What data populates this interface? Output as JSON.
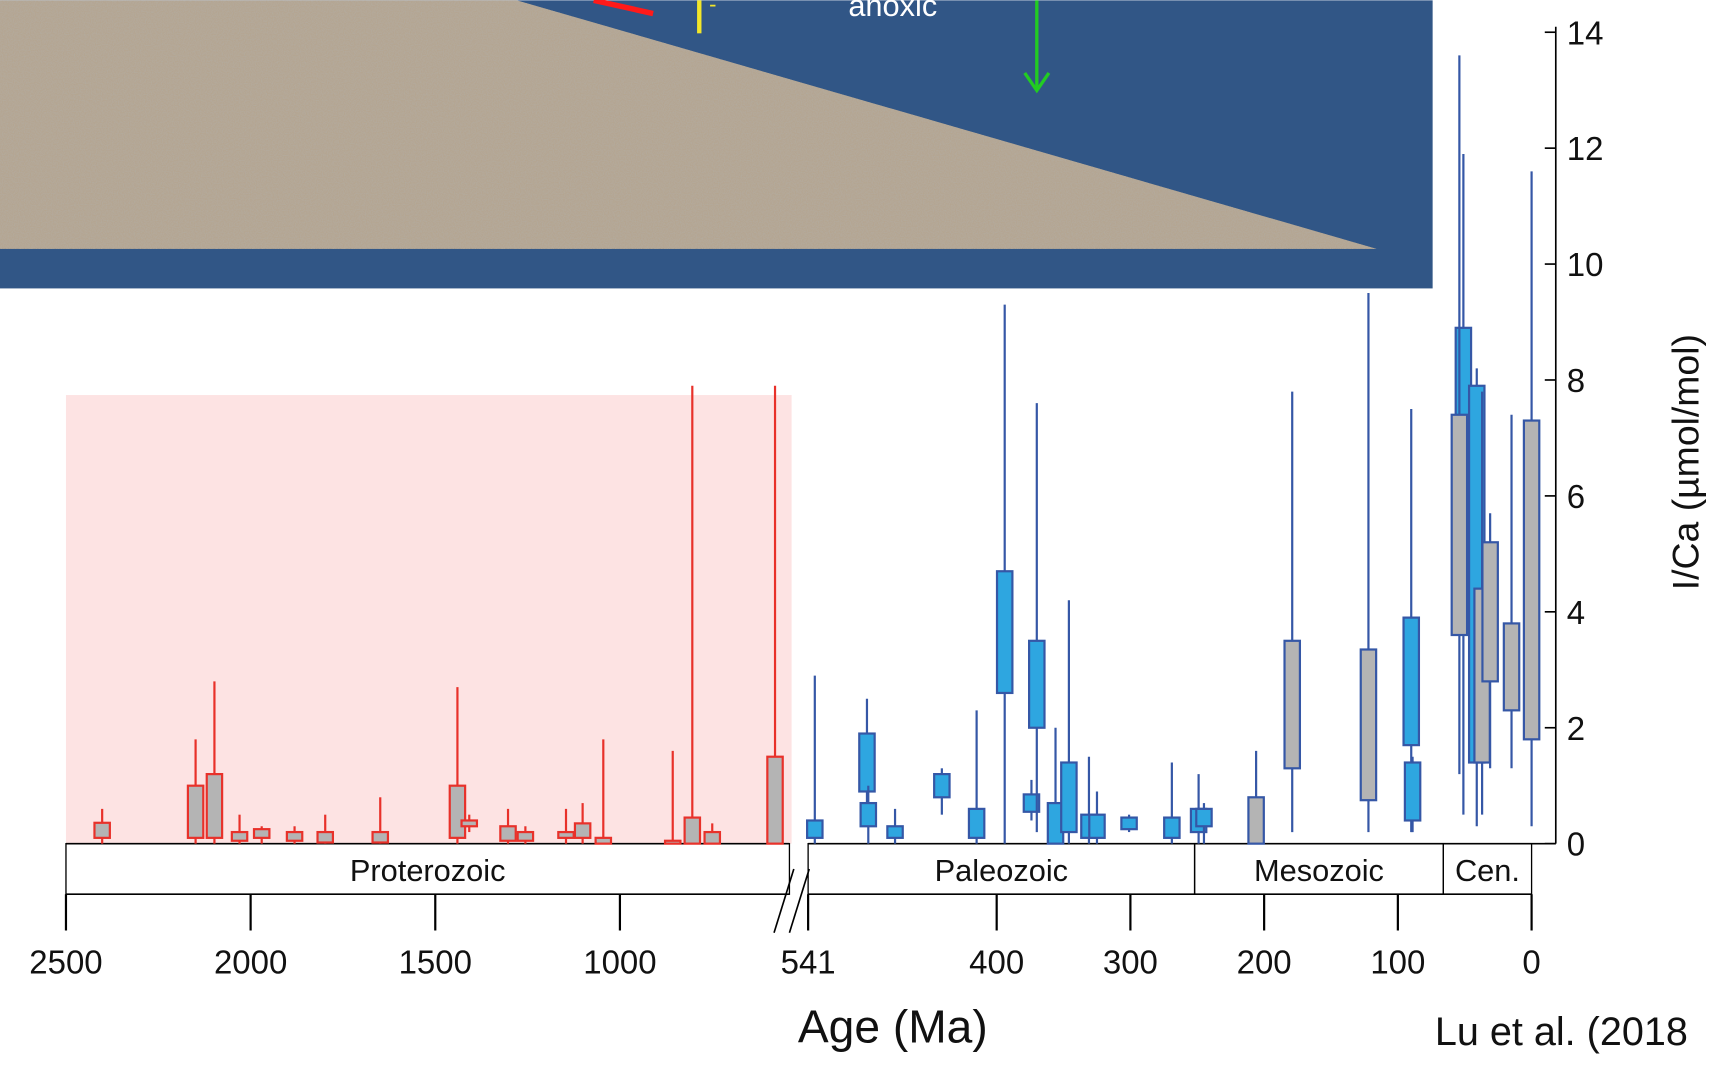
{
  "slide": {
    "annotation": "anoxic",
    "sign": "-",
    "citation": "Lu et al. (2018"
  },
  "chart_data": [
    {
      "type": "boxplot",
      "background": "#fde3e3",
      "xlim": [
        2500,
        541
      ],
      "xticks": [
        2500,
        2000,
        1500,
        1000
      ],
      "ylim": [
        0,
        14
      ],
      "eras": [
        {
          "name": "Proterozoic",
          "start": 2500,
          "end": 541
        }
      ],
      "series": [
        {
          "color": "#e8312a",
          "fill": "#b4b4b4",
          "boxes": [
            {
              "x": 2402,
              "whislo": 0,
              "q1": 0.1,
              "q3": 0.36,
              "whishi": 0.6
            },
            {
              "x": 2149,
              "whislo": 0,
              "q1": 0.1,
              "q3": 1.0,
              "whishi": 1.8
            },
            {
              "x": 2098,
              "whislo": 0,
              "q1": 0.1,
              "q3": 1.2,
              "whishi": 2.8
            },
            {
              "x": 2030,
              "whislo": 0,
              "q1": 0.05,
              "q3": 0.2,
              "whishi": 0.5
            },
            {
              "x": 1970,
              "whislo": 0,
              "q1": 0.1,
              "q3": 0.25,
              "whishi": 0.3
            },
            {
              "x": 1881,
              "whislo": 0,
              "q1": 0.05,
              "q3": 0.2,
              "whishi": 0.3
            },
            {
              "x": 1798,
              "whislo": 0,
              "q1": 0.02,
              "q3": 0.2,
              "whishi": 0.5
            },
            {
              "x": 1649,
              "whislo": 0,
              "q1": 0.02,
              "q3": 0.2,
              "whishi": 0.8
            },
            {
              "x": 1440,
              "whislo": 0,
              "q1": 0.1,
              "q3": 1.0,
              "whishi": 2.7
            },
            {
              "x": 1408,
              "whislo": 0.2,
              "q1": 0.3,
              "q3": 0.4,
              "whishi": 0.5
            },
            {
              "x": 1303,
              "whislo": 0,
              "q1": 0.05,
              "q3": 0.3,
              "whishi": 0.6
            },
            {
              "x": 1256,
              "whislo": 0,
              "q1": 0.05,
              "q3": 0.2,
              "whishi": 0.3
            },
            {
              "x": 1146,
              "whislo": 0,
              "q1": 0.1,
              "q3": 0.2,
              "whishi": 0.6
            },
            {
              "x": 1101,
              "whislo": 0,
              "q1": 0.1,
              "q3": 0.35,
              "whishi": 0.7
            },
            {
              "x": 1045,
              "whislo": 0,
              "q1": 0,
              "q3": 0.1,
              "whishi": 1.8
            },
            {
              "x": 857,
              "whislo": 0,
              "q1": 0,
              "q3": 0.05,
              "whishi": 1.6
            },
            {
              "x": 804,
              "whislo": 0,
              "q1": 0,
              "q3": 0.45,
              "whishi": 7.9
            },
            {
              "x": 750,
              "whislo": 0,
              "q1": 0,
              "q3": 0.2,
              "whishi": 0.35
            },
            {
              "x": 580,
              "whislo": 0,
              "q1": 0,
              "q3": 1.5,
              "whishi": 7.9
            }
          ]
        }
      ]
    },
    {
      "type": "boxplot",
      "xlabel": "Age (Ma)",
      "ylabel": "I/Ca (µmol/mol)",
      "xlim": [
        541,
        0
      ],
      "xticks": [
        541,
        400,
        300,
        200,
        100,
        0
      ],
      "ylim": [
        0,
        14
      ],
      "yticks": [
        0,
        2,
        4,
        6,
        8,
        10,
        12,
        14
      ],
      "eras": [
        {
          "name": "Paleozoic",
          "start": 541,
          "end": 252
        },
        {
          "name": "Mesozoic",
          "start": 252,
          "end": 66
        },
        {
          "name": "Cen.",
          "start": 66,
          "end": 0
        }
      ],
      "series": [
        {
          "color": "#3557a6",
          "fill": "#2ea6e0",
          "boxes": [
            {
              "x": 536,
              "whislo": 0,
              "q1": 0.1,
              "q3": 0.4,
              "whishi": 2.9
            },
            {
              "x": 497,
              "whislo": 0.3,
              "q1": 0.9,
              "q3": 1.9,
              "whishi": 2.5
            },
            {
              "x": 496,
              "whislo": 0,
              "q1": 0.3,
              "q3": 0.7,
              "whishi": 1.0
            },
            {
              "x": 476,
              "whislo": 0,
              "q1": 0.1,
              "q3": 0.3,
              "whishi": 0.6
            },
            {
              "x": 441,
              "whislo": 0.5,
              "q1": 0.8,
              "q3": 1.2,
              "whishi": 1.3
            },
            {
              "x": 415,
              "whislo": 0,
              "q1": 0.1,
              "q3": 0.6,
              "whishi": 2.3
            },
            {
              "x": 394,
              "whislo": 0,
              "q1": 2.6,
              "q3": 4.7,
              "whishi": 9.3
            },
            {
              "x": 374,
              "whislo": 0.4,
              "q1": 0.55,
              "q3": 0.85,
              "whishi": 1.1
            },
            {
              "x": 370,
              "whislo": 0.2,
              "q1": 2.0,
              "q3": 3.5,
              "whishi": 7.6
            },
            {
              "x": 356,
              "whislo": 0,
              "q1": 0,
              "q3": 0.7,
              "whishi": 2.0
            },
            {
              "x": 346,
              "whislo": 0,
              "q1": 0.2,
              "q3": 1.4,
              "whishi": 4.2
            },
            {
              "x": 331,
              "whislo": 0,
              "q1": 0.1,
              "q3": 0.5,
              "whishi": 1.5
            },
            {
              "x": 325,
              "whislo": 0,
              "q1": 0.1,
              "q3": 0.5,
              "whishi": 0.9
            },
            {
              "x": 301,
              "whislo": 0.2,
              "q1": 0.25,
              "q3": 0.45,
              "whishi": 0.5
            },
            {
              "x": 269,
              "whislo": 0,
              "q1": 0.1,
              "q3": 0.45,
              "whishi": 1.4
            },
            {
              "x": 249,
              "whislo": 0,
              "q1": 0.2,
              "q3": 0.6,
              "whishi": 1.2
            },
            {
              "x": 245,
              "whislo": 0,
              "q1": 0.3,
              "q3": 0.6,
              "whishi": 0.7
            },
            {
              "x": 90,
              "whislo": 0.2,
              "q1": 1.7,
              "q3": 3.9,
              "whishi": 7.5
            },
            {
              "x": 89,
              "whislo": 0.2,
              "q1": 0.4,
              "q3": 1.4,
              "whishi": 1.5
            },
            {
              "x": 51,
              "whislo": 0.5,
              "q1": 5.3,
              "q3": 8.9,
              "whishi": 11.9
            },
            {
              "x": 41,
              "whislo": 0.3,
              "q1": 1.4,
              "q3": 7.9,
              "whishi": 8.2
            }
          ]
        },
        {
          "color": "#3557a6",
          "fill": "#b4b4b4",
          "boxes": [
            {
              "x": 206,
              "whislo": 0,
              "q1": 0,
              "q3": 0.8,
              "whishi": 1.6
            },
            {
              "x": 179,
              "whislo": 0.2,
              "q1": 1.3,
              "q3": 3.5,
              "whishi": 7.8
            },
            {
              "x": 122,
              "whislo": 0.2,
              "q1": 0.75,
              "q3": 3.35,
              "whishi": 9.5
            },
            {
              "x": 54,
              "whislo": 1.2,
              "q1": 3.6,
              "q3": 7.4,
              "whishi": 13.6
            },
            {
              "x": 37,
              "whislo": 0.5,
              "q1": 1.4,
              "q3": 4.4,
              "whishi": 7.8
            },
            {
              "x": 31,
              "whislo": 1.3,
              "q1": 2.8,
              "q3": 5.2,
              "whishi": 5.7
            },
            {
              "x": 15,
              "whislo": 1.3,
              "q1": 2.3,
              "q3": 3.8,
              "whishi": 7.4
            },
            {
              "x": 0,
              "whislo": 0.3,
              "q1": 1.8,
              "q3": 7.3,
              "whishi": 11.6
            }
          ]
        }
      ]
    }
  ]
}
